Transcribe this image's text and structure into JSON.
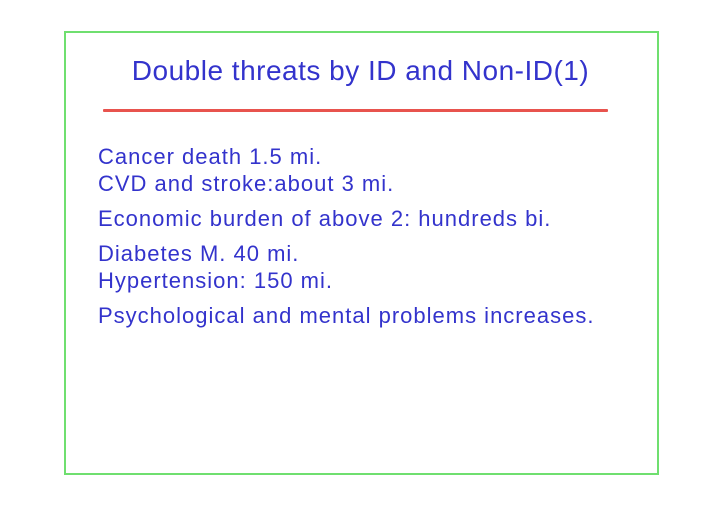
{
  "slide": {
    "title": "Double threats by ID and Non-ID(1)",
    "paragraphs": [
      {
        "lines": [
          "Cancer death 1.5 mi.",
          "CVD and stroke:about 3 mi."
        ]
      },
      {
        "lines": [
          "Economic burden of above 2: hundreds bi."
        ]
      },
      {
        "lines": [
          "Diabetes M. 40 mi.",
          "Hypertension: 150 mi."
        ]
      },
      {
        "lines": [
          "Psychological and mental problems increases."
        ]
      }
    ],
    "colors": {
      "text_blue": "#3333cc",
      "underline_red": "#e8534e",
      "border_green": "#6fdf6f",
      "background": "#ffffff"
    }
  }
}
